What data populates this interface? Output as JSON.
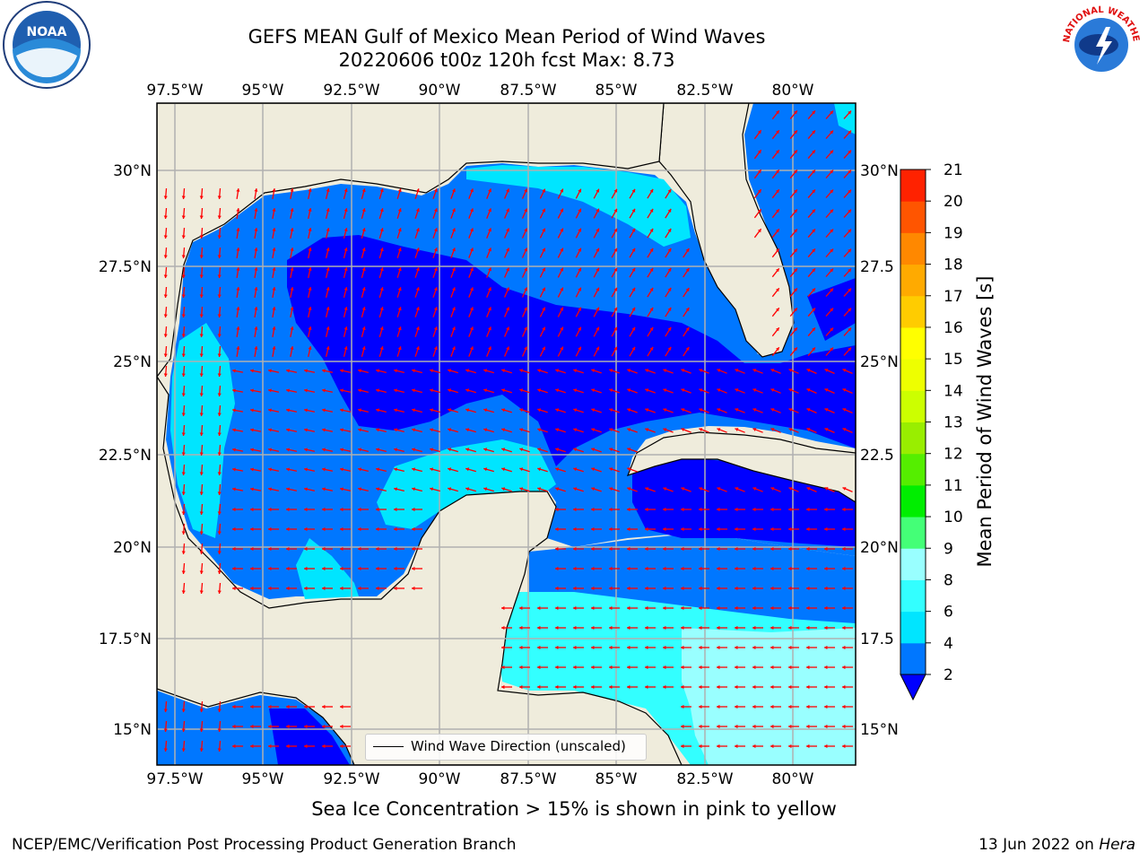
{
  "header": {
    "title_line1": "GEFS MEAN Gulf of Mexico Mean Period of Wind Waves",
    "title_line2": "20220606 t00z 120h fcst   Max: 8.73"
  },
  "map": {
    "lon_ticks": [
      "97.5°W",
      "95°W",
      "92.5°W",
      "90°W",
      "87.5°W",
      "85°W",
      "82.5°W",
      "80°W"
    ],
    "lat_ticks_left": [
      "30°N",
      "27.5°N",
      "25°N",
      "22.5°N",
      "20°N",
      "17.5°N",
      "15°N"
    ],
    "lat_ticks_right": [
      "30°N",
      "27.5",
      "25°N",
      "22.5",
      "20°N",
      "17.5",
      "15°N"
    ],
    "legend_label": "Wind Wave Direction (unscaled)",
    "land_color": "#efecdc",
    "arrow_color": "#ff0000",
    "gridline_color": "#b0b0b0"
  },
  "colorbar": {
    "label": "Mean Period of Wind Waves [s]",
    "ticks": [
      "2",
      "4",
      "6",
      "8",
      "9",
      "10",
      "11",
      "12",
      "13",
      "14",
      "15",
      "16",
      "17",
      "18",
      "19",
      "20",
      "21"
    ],
    "colors": [
      "#0000ff",
      "#0077ff",
      "#00e5ff",
      "#33ffff",
      "#99ffff",
      "#44ff77",
      "#00ee00",
      "#55ee00",
      "#99ee00",
      "#ccff00",
      "#eeff00",
      "#ffff00",
      "#ffcc00",
      "#ffaa00",
      "#ff8800",
      "#ff5500",
      "#ff2200",
      "#ff0000"
    ]
  },
  "footer": {
    "sea_ice_note": "Sea Ice Concentration > 15% is shown in pink to yellow",
    "credit_left": "NCEP/EMC/Verification Post Processing Product Generation Branch",
    "credit_date": "13 Jun 2022 on ",
    "credit_machine": "Hera"
  },
  "logos": {
    "noaa_text": "NOAA",
    "nws_text": "NATIONAL WEATHER SERVICE"
  }
}
